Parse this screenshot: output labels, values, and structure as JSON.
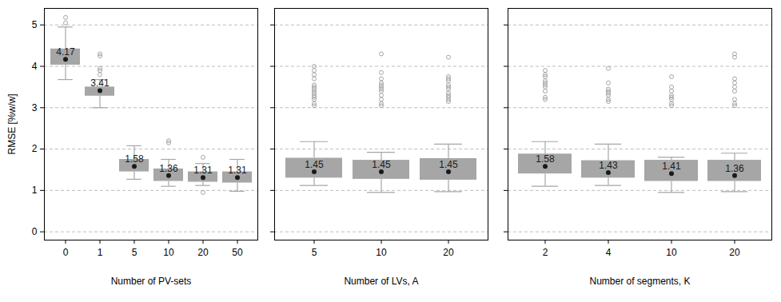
{
  "chart_data": [
    {
      "type": "box",
      "xlabel": "Number of PV-sets",
      "ylabel": "RMSE [%w/w]",
      "categories": [
        "0",
        "1",
        "5",
        "10",
        "20",
        "50"
      ],
      "whisker_low": [
        3.68,
        3.0,
        1.27,
        1.1,
        1.12,
        0.98
      ],
      "q1": [
        4.03,
        3.28,
        1.45,
        1.22,
        1.2,
        1.18
      ],
      "values": [
        4.17,
        3.41,
        1.58,
        1.36,
        1.31,
        1.31
      ],
      "q3": [
        4.42,
        3.5,
        1.75,
        1.52,
        1.45,
        1.45
      ],
      "whisker_high": [
        4.95,
        3.68,
        2.08,
        1.75,
        1.65,
        1.75
      ],
      "outliers": [
        [
          5.05,
          5.18
        ],
        [
          3.8,
          3.9,
          3.95,
          4.25,
          4.3
        ],
        [],
        [
          2.15,
          2.2
        ],
        [
          0.95,
          1.8
        ],
        []
      ],
      "ylim": [
        -0.2,
        5.4
      ],
      "yticks": [
        0,
        1,
        2,
        3,
        4,
        5
      ],
      "grid": true,
      "data_labels": true,
      "tick_labels": true,
      "color": "#a6a6a6"
    },
    {
      "type": "box",
      "xlabel": "Number of LVs, A",
      "categories": [
        "5",
        "10",
        "20"
      ],
      "whisker_low": [
        1.12,
        0.95,
        0.97
      ],
      "q1": [
        1.3,
        1.27,
        1.25
      ],
      "values": [
        1.45,
        1.45,
        1.45
      ],
      "q3": [
        1.78,
        1.73,
        1.77
      ],
      "whisker_high": [
        2.18,
        1.92,
        2.12
      ],
      "outliers": [
        [
          3.05,
          3.1,
          3.2,
          3.25,
          3.3,
          3.35,
          3.4,
          3.45,
          3.5,
          3.55,
          3.7,
          3.8,
          3.9,
          4.0
        ],
        [
          3.05,
          3.1,
          3.2,
          3.3,
          3.4,
          3.45,
          3.5,
          3.55,
          3.6,
          3.7,
          3.85,
          4.3
        ],
        [
          3.15,
          3.2,
          3.25,
          3.3,
          3.35,
          3.45,
          3.5,
          3.55,
          3.65,
          3.7,
          3.75,
          4.22
        ]
      ],
      "ylim": [
        -0.2,
        5.4
      ],
      "yticks": [
        0,
        1,
        2,
        3,
        4,
        5
      ],
      "grid": true,
      "data_labels": true,
      "tick_labels": "x",
      "color": "#a6a6a6"
    },
    {
      "type": "box",
      "xlabel": "Number of segments, K",
      "categories": [
        "2",
        "4",
        "10",
        "20"
      ],
      "whisker_low": [
        1.1,
        1.12,
        0.95,
        0.97
      ],
      "q1": [
        1.4,
        1.3,
        1.22,
        1.22
      ],
      "values": [
        1.58,
        1.43,
        1.41,
        1.36
      ],
      "q3": [
        1.88,
        1.72,
        1.73,
        1.73
      ],
      "whisker_high": [
        2.18,
        2.12,
        1.8,
        1.9
      ],
      "outliers": [
        [
          3.2,
          3.25,
          3.4,
          3.5,
          3.55,
          3.6,
          3.65,
          3.75,
          3.8,
          3.9
        ],
        [
          3.15,
          3.2,
          3.3,
          3.35,
          3.4,
          3.45,
          3.6,
          3.95
        ],
        [
          3.05,
          3.1,
          3.2,
          3.25,
          3.3,
          3.4,
          3.5,
          3.75
        ],
        [
          3.05,
          3.1,
          3.2,
          3.4,
          3.5,
          3.6,
          3.7,
          4.22,
          4.3
        ]
      ],
      "ylim": [
        -0.2,
        5.4
      ],
      "yticks": [
        0,
        1,
        2,
        3,
        4,
        5
      ],
      "grid": true,
      "data_labels": true,
      "tick_labels": "x",
      "color": "#a6a6a6"
    }
  ]
}
